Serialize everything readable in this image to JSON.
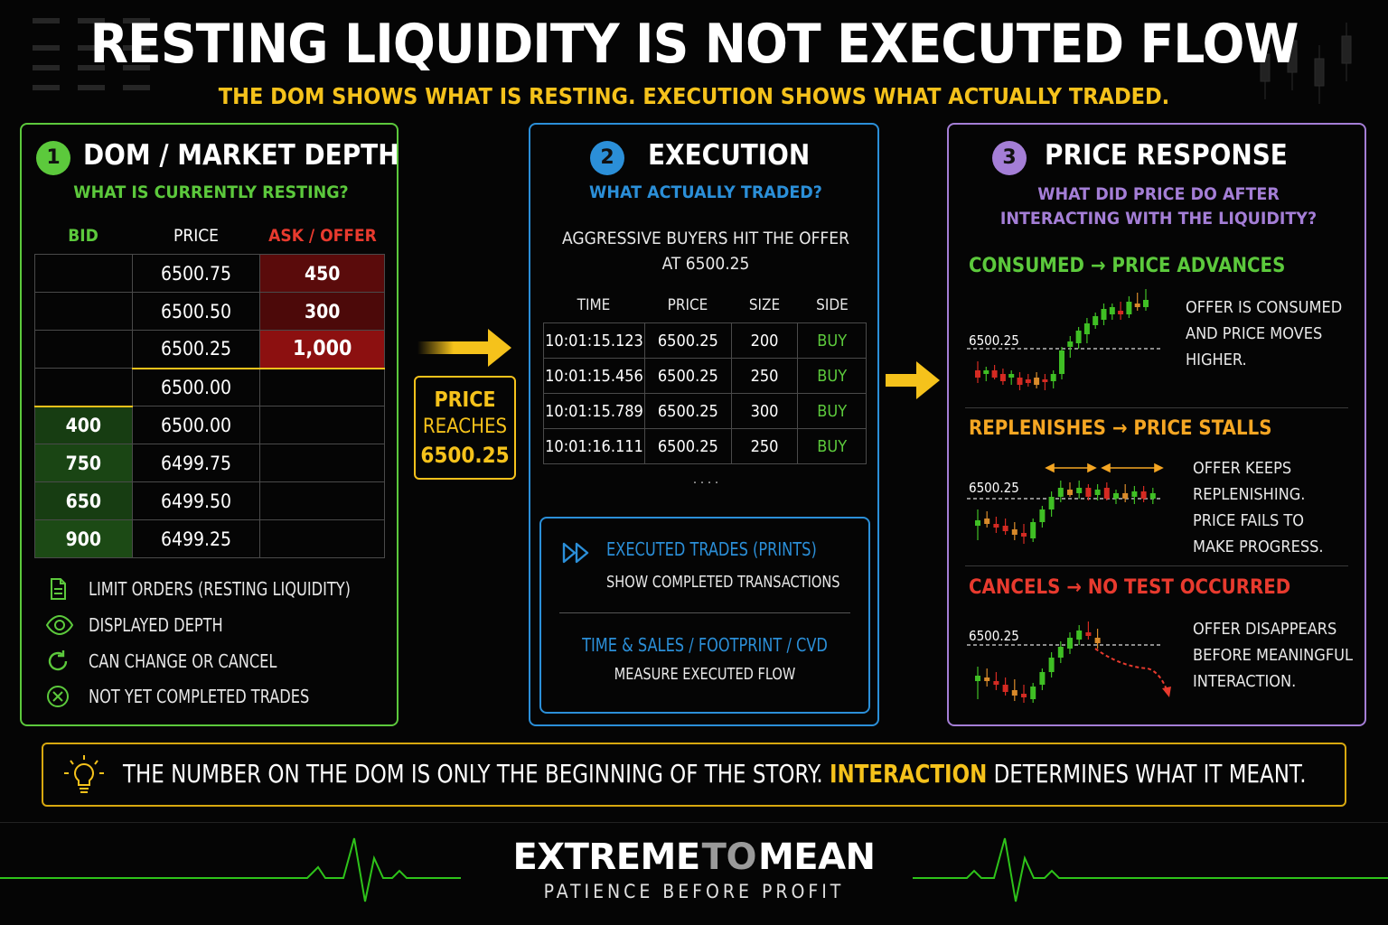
{
  "header": {
    "title": "RESTING LIQUIDITY IS NOT EXECUTED FLOW",
    "subtitle": "THE DOM SHOWS WHAT IS RESTING. EXECUTION SHOWS WHAT ACTUALLY TRADED."
  },
  "panel1": {
    "number": "1",
    "title": "DOM / MARKET DEPTH",
    "question": "WHAT IS CURRENTLY RESTING?",
    "columns": {
      "bid": "BID",
      "price": "PRICE",
      "ask": "ASK / OFFER"
    },
    "rows": [
      {
        "bid": "",
        "price": "6500.75",
        "ask": "450"
      },
      {
        "bid": "",
        "price": "6500.50",
        "ask": "300"
      },
      {
        "bid": "",
        "price": "6500.25",
        "ask": "1,000"
      },
      {
        "bid": "",
        "price": "6500.00",
        "ask": ""
      },
      {
        "bid": "400",
        "price": "6500.00",
        "ask": ""
      },
      {
        "bid": "750",
        "price": "6499.75",
        "ask": ""
      },
      {
        "bid": "650",
        "price": "6499.50",
        "ask": ""
      },
      {
        "bid": "900",
        "price": "6499.25",
        "ask": ""
      }
    ],
    "legend": [
      {
        "icon": "document-icon",
        "label": "LIMIT ORDERS (RESTING LIQUIDITY)"
      },
      {
        "icon": "eye-icon",
        "label": "DISPLAYED DEPTH"
      },
      {
        "icon": "refresh-icon",
        "label": "CAN CHANGE OR CANCEL"
      },
      {
        "icon": "x-circle-icon",
        "label": "NOT YET COMPLETED TRADES"
      }
    ]
  },
  "connector": {
    "line1": "PRICE",
    "line2": "REACHES",
    "line3": "6500.25"
  },
  "panel2": {
    "number": "2",
    "title": "EXECUTION",
    "question": "WHAT ACTUALLY TRADED?",
    "description_line1": "AGGRESSIVE BUYERS HIT THE OFFER",
    "description_line2": "AT 6500.25",
    "columns": {
      "time": "TIME",
      "price": "PRICE",
      "size": "SIZE",
      "side": "SIDE"
    },
    "trades": [
      {
        "time": "10:01:15.123",
        "price": "6500.25",
        "size": "200",
        "side": "BUY"
      },
      {
        "time": "10:01:15.456",
        "price": "6500.25",
        "size": "250",
        "side": "BUY"
      },
      {
        "time": "10:01:15.789",
        "price": "6500.25",
        "size": "300",
        "side": "BUY"
      },
      {
        "time": "10:01:16.111",
        "price": "6500.25",
        "size": "250",
        "side": "BUY"
      }
    ],
    "ellipsis": ". . . .",
    "info": {
      "prints_title": "EXECUTED TRADES (PRINTS)",
      "prints_text": "SHOW COMPLETED TRANSACTIONS",
      "tools_title": "TIME & SALES / FOOTPRINT / CVD",
      "tools_text": "MEASURE EXECUTED FLOW"
    }
  },
  "panel3": {
    "number": "3",
    "title": "PRICE RESPONSE",
    "question_line1": "WHAT DID PRICE DO AFTER",
    "question_line2": "INTERACTING WITH THE LIQUIDITY?",
    "scenarios": [
      {
        "head": "CONSUMED → PRICE ADVANCES",
        "level": "6500.25",
        "text": [
          "OFFER IS CONSUMED",
          "AND PRICE MOVES",
          "HIGHER."
        ]
      },
      {
        "head": "REPLENISHES → PRICE STALLS",
        "level": "6500.25",
        "text": [
          "OFFER KEEPS",
          "REPLENISHING.",
          "PRICE FAILS TO",
          "MAKE PROGRESS."
        ]
      },
      {
        "head": "CANCELS  → NO TEST OCCURRED",
        "level": "6500.25",
        "text": [
          "OFFER DISAPPEARS",
          "BEFORE MEANINGFUL",
          "INTERACTION."
        ]
      }
    ]
  },
  "bottom": {
    "text_before": "THE NUMBER ON THE DOM IS ONLY THE BEGINNING OF THE STORY.",
    "highlight": "INTERACTION",
    "text_after": "DETERMINES WHAT IT MEANT."
  },
  "brand": {
    "word1": "EXTREME",
    "word2": "TO",
    "word3": "MEAN",
    "tagline": "PATIENCE BEFORE PROFIT"
  },
  "colors": {
    "green": "#5cc93c",
    "blue": "#2b8fd8",
    "purple": "#a47ed6",
    "yellow": "#f5c21b",
    "red": "#e83a2e"
  }
}
